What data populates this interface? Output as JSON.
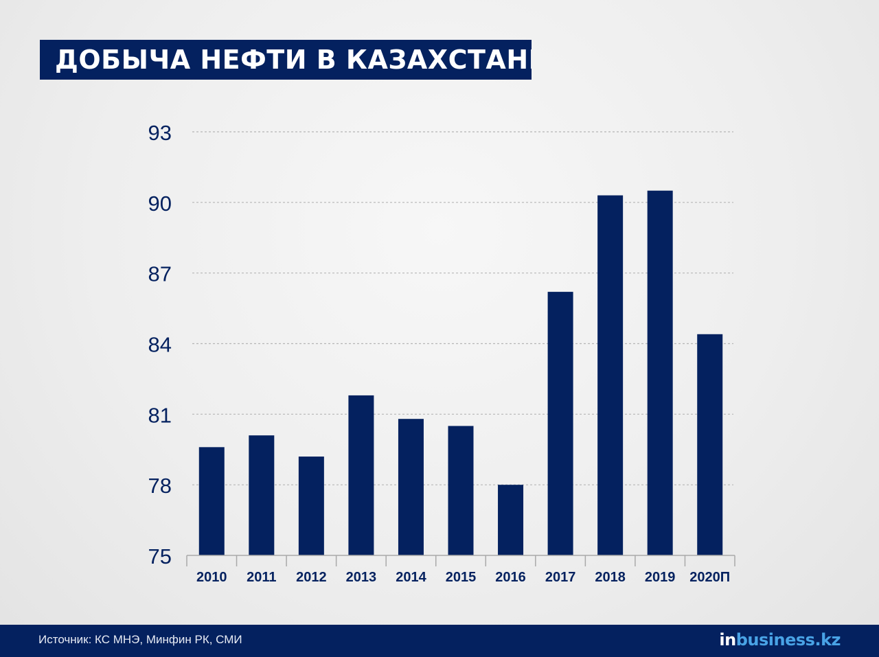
{
  "header": {
    "title": "ДОБЫЧА НЕФТИ В КАЗАХСТАНЕ"
  },
  "footer": {
    "source": "Источник: КС МНЭ, Минфин РК, СМИ",
    "logo_prefix": "in",
    "logo_suffix": "business.kz"
  },
  "colors": {
    "bar": "#04215f",
    "axis_text": "#04215f",
    "gridline": "#b5b5b5",
    "logo_accent": "#49a3e6"
  },
  "chart_data": {
    "type": "bar",
    "title": "ДОБЫЧА НЕФТИ В КАЗАХСТАНЕ",
    "categories": [
      "2010",
      "2011",
      "2012",
      "2013",
      "2014",
      "2015",
      "2016",
      "2017",
      "2018",
      "2019",
      "2020П"
    ],
    "values": [
      79.6,
      80.1,
      79.2,
      81.8,
      80.8,
      80.5,
      78.0,
      86.2,
      90.3,
      90.5,
      84.4
    ],
    "ylim": [
      75,
      93
    ],
    "yticks": [
      75,
      78,
      81,
      84,
      87,
      90,
      93
    ],
    "xlabel": "",
    "ylabel": "",
    "grid": true,
    "legend": "none"
  }
}
